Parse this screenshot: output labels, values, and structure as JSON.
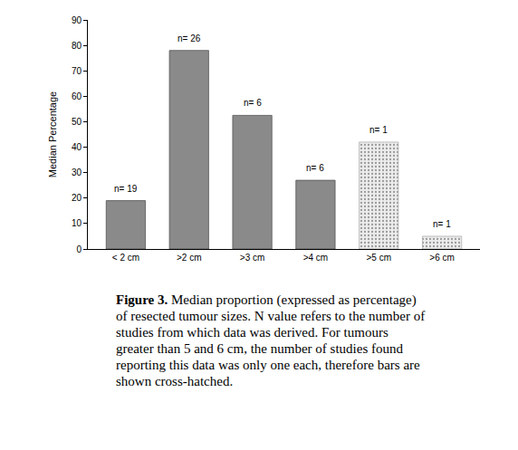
{
  "chart_data": {
    "type": "bar",
    "y_label": "Median Percentage",
    "categories": [
      "< 2 cm",
      ">2 cm",
      ">3 cm",
      ">4 cm",
      ">5 cm",
      ">6 cm"
    ],
    "series": [
      {
        "color": "#8a8a8a",
        "values": [
          19,
          78,
          52.5,
          27,
          null,
          null
        ]
      },
      {
        "color": "#ececec",
        "marker": "hatched",
        "values": [
          null,
          null,
          null,
          null,
          42,
          5
        ]
      }
    ],
    "annotations": [
      "n= 19",
      "n= 26",
      "n= 6",
      "n= 6",
      "n= 1",
      "n= 1"
    ],
    "ylim": [
      0,
      90
    ],
    "yticks": [
      0,
      10,
      20,
      30,
      40,
      50,
      60,
      70,
      80,
      90
    ],
    "grid": false,
    "caption_label": "Figure 3.",
    "caption": "Median proportion (expressed as percentage) of resected tumour sizes. N value refers to the number of studies from which data was derived. For tumours greater than 5 and 6 cm, the number of studies found reporting this data was only one each, therefore bars are shown cross-hatched."
  }
}
